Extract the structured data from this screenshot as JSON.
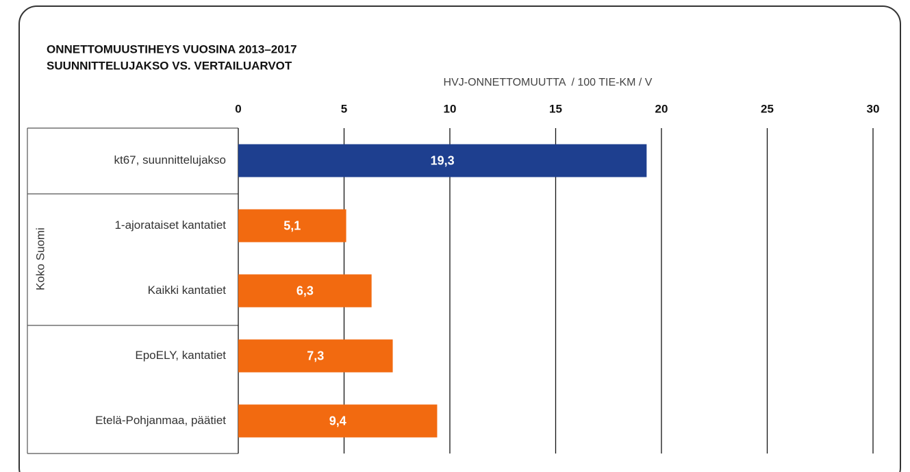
{
  "chart_data": {
    "type": "barh",
    "title": "ONNETTOMUUSTIHEYS VUOSINA 2013–2017",
    "subtitle": "SUUNNITTELUJAKSO VS. VERTAILUARVOT",
    "x_label": "HVJ-ONNETTOMUUTTA  / 100 TIE-KM / V",
    "categories": [
      "kt67, suunnittelujakso",
      "1-ajorataiset kantatiet",
      "Kaikki kantatiet",
      "EpoELY, kantatiet",
      "Etelä-Pohjanmaa, päätiet"
    ],
    "values": [
      19.3,
      5.1,
      6.3,
      7.3,
      9.4
    ],
    "value_labels": [
      "19,3",
      "5,1",
      "6,3",
      "7,3",
      "9,4"
    ],
    "colors": [
      "#1e3f8f",
      "#f26a10",
      "#f26a10",
      "#f26a10",
      "#f26a10"
    ],
    "group_label": "Koko Suomi",
    "xlim": [
      0,
      30
    ],
    "xticks": [
      0,
      5,
      10,
      15,
      20,
      25,
      30
    ],
    "grid": true
  }
}
